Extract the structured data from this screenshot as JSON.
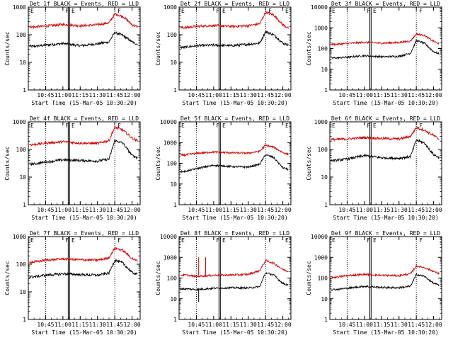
{
  "figure": {
    "xlabel": "Start Time (15-Mar-05 10:30:20)",
    "ylabel": "Counts/sec",
    "x_ticks": [
      "10:45",
      "11:00",
      "11:15",
      "11:30",
      "11:45",
      "12:00"
    ],
    "y_ticks": [
      "1",
      "10",
      "100",
      "1000",
      "10000"
    ],
    "flag_labels": [
      "E",
      "F",
      "E",
      "F",
      "E"
    ],
    "colors": {
      "events": "#000000",
      "lld": "#d40000",
      "background": "#ffffff"
    }
  },
  "chart_data": [
    {
      "type": "line",
      "title": "Det 1f BLACK = Events, RED = LLD",
      "xlabel": "Start Time (15-Mar-05 10:30:20)",
      "ylabel": "Counts/sec",
      "x_range": [
        "10:30",
        "12:07"
      ],
      "y_scale": "log",
      "ylim": [
        1,
        1000
      ],
      "y_ticks": [
        "1",
        "10",
        "100",
        "1000"
      ],
      "x": [
        "10:35",
        "10:45",
        "11:00",
        "11:15",
        "11:30",
        "11:40",
        "11:45",
        "11:52",
        "12:00",
        "12:05"
      ],
      "series": [
        {
          "values": [
            38,
            42,
            48,
            40,
            47,
            55,
            120,
            95,
            55,
            45
          ]
        },
        {
          "values": [
            190,
            205,
            235,
            210,
            230,
            270,
            560,
            460,
            230,
            190
          ]
        }
      ]
    },
    {
      "type": "line",
      "title": "Det 2f BLACK = Events, RED = LLD",
      "xlabel": "Start Time (15-Mar-05 10:30:20)",
      "ylabel": "Counts/sec",
      "x_range": [
        "10:30",
        "12:07"
      ],
      "y_scale": "log",
      "ylim": [
        1,
        1000
      ],
      "y_ticks": [
        "1",
        "10",
        "100",
        "1000"
      ],
      "x": [
        "10:35",
        "10:45",
        "11:00",
        "11:15",
        "11:30",
        "11:40",
        "11:45",
        "11:52",
        "12:00",
        "12:05"
      ],
      "series": [
        {
          "values": [
            35,
            40,
            42,
            40,
            45,
            50,
            130,
            100,
            50,
            42
          ]
        },
        {
          "values": [
            180,
            200,
            215,
            200,
            210,
            250,
            650,
            520,
            230,
            170
          ]
        }
      ]
    },
    {
      "type": "line",
      "title": "Det 3f BLACK = Events, RED = LLD",
      "xlabel": "Start Time (15-Mar-05 10:30:20)",
      "ylabel": "Counts/sec",
      "x_range": [
        "10:30",
        "12:07"
      ],
      "y_scale": "log",
      "ylim": [
        1,
        10000
      ],
      "y_ticks": [
        "1",
        "10",
        "100",
        "1000",
        "10000"
      ],
      "x": [
        "10:35",
        "10:45",
        "11:00",
        "11:15",
        "11:30",
        "11:40",
        "11:45",
        "11:52",
        "12:00",
        "12:05"
      ],
      "series": [
        {
          "values": [
            35,
            38,
            45,
            40,
            42,
            60,
            240,
            180,
            70,
            55
          ]
        },
        {
          "values": [
            160,
            175,
            200,
            180,
            195,
            230,
            500,
            430,
            220,
            170
          ]
        }
      ]
    },
    {
      "type": "line",
      "title": "Det 4f BLACK = Events, RED = LLD",
      "xlabel": "Start Time (15-Mar-05 10:30:20)",
      "ylabel": "Counts/sec",
      "x_range": [
        "10:30",
        "12:07"
      ],
      "y_scale": "log",
      "ylim": [
        1,
        1000
      ],
      "y_ticks": [
        "1",
        "10",
        "100",
        "1000"
      ],
      "x": [
        "10:35",
        "10:45",
        "11:00",
        "11:15",
        "11:30",
        "11:40",
        "11:45",
        "11:52",
        "12:00",
        "12:05"
      ],
      "series": [
        {
          "values": [
            30,
            35,
            42,
            40,
            38,
            45,
            210,
            170,
            60,
            50
          ]
        },
        {
          "values": [
            150,
            170,
            190,
            170,
            165,
            210,
            650,
            500,
            260,
            200
          ]
        }
      ]
    },
    {
      "type": "line",
      "title": "Det 5f BLACK = Events, RED = LLD",
      "xlabel": "Start Time (15-Mar-05 10:30:20)",
      "ylabel": "Counts/sec",
      "x_range": [
        "10:30",
        "12:07"
      ],
      "y_scale": "log",
      "ylim": [
        1,
        10000
      ],
      "y_ticks": [
        "1",
        "10",
        "100",
        "1000",
        "10000"
      ],
      "x": [
        "10:35",
        "10:45",
        "11:00",
        "11:15",
        "11:30",
        "11:40",
        "11:45",
        "11:52",
        "12:00",
        "12:05"
      ],
      "series": [
        {
          "values": [
            40,
            55,
            80,
            70,
            65,
            90,
            260,
            190,
            60,
            50
          ]
        },
        {
          "values": [
            250,
            300,
            350,
            320,
            310,
            380,
            750,
            600,
            330,
            260
          ]
        }
      ]
    },
    {
      "type": "line",
      "title": "Det 6f BLACK = Events, RED = LLD",
      "xlabel": "Start Time (15-Mar-05 10:30:20)",
      "ylabel": "Counts/sec",
      "x_range": [
        "10:30",
        "12:07"
      ],
      "y_scale": "log",
      "ylim": [
        1,
        1000
      ],
      "y_ticks": [
        "1",
        "10",
        "100",
        "1000"
      ],
      "x": [
        "10:35",
        "10:45",
        "11:00",
        "11:15",
        "11:30",
        "11:40",
        "11:45",
        "11:52",
        "12:00",
        "12:05"
      ],
      "series": [
        {
          "values": [
            40,
            45,
            60,
            50,
            48,
            55,
            220,
            170,
            65,
            50
          ]
        },
        {
          "values": [
            230,
            240,
            270,
            250,
            240,
            300,
            620,
            500,
            320,
            230
          ]
        }
      ]
    },
    {
      "type": "line",
      "title": "Det 7f BLACK = Events, RED = LLD",
      "xlabel": "Start Time (15-Mar-05 10:30:20)",
      "ylabel": "Counts/sec",
      "x_range": [
        "10:30",
        "12:07"
      ],
      "y_scale": "log",
      "ylim": [
        1,
        1000
      ],
      "y_ticks": [
        "1",
        "10",
        "100",
        "1000"
      ],
      "x": [
        "10:35",
        "10:45",
        "11:00",
        "11:15",
        "11:30",
        "11:40",
        "11:45",
        "11:52",
        "12:00",
        "12:05"
      ],
      "series": [
        {
          "values": [
            35,
            40,
            45,
            42,
            40,
            48,
            140,
            110,
            50,
            42
          ]
        },
        {
          "values": [
            120,
            140,
            155,
            145,
            140,
            170,
            380,
            320,
            160,
            130
          ]
        }
      ]
    },
    {
      "type": "line",
      "title": "Det 8f BLACK = Events, RED = LLD",
      "xlabel": "Start Time (15-Mar-05 10:30:20)",
      "ylabel": "Counts/sec",
      "x_range": [
        "10:30",
        "12:07"
      ],
      "y_scale": "log",
      "ylim": [
        1,
        10000
      ],
      "y_ticks": [
        "1",
        "10",
        "100",
        "1000",
        "10000"
      ],
      "x": [
        "10:35",
        "10:45",
        "11:00",
        "11:15",
        "11:30",
        "11:40",
        "11:45",
        "11:52",
        "12:00",
        "12:05"
      ],
      "series": [
        {
          "values": [
            30,
            28,
            32,
            34,
            33,
            38,
            180,
            140,
            55,
            45
          ]
        },
        {
          "values": [
            140,
            120,
            135,
            140,
            150,
            230,
            700,
            520,
            260,
            200
          ]
        }
      ]
    },
    {
      "type": "line",
      "title": "Det 9f BLACK = Events, RED = LLD",
      "xlabel": "Start Time (15-Mar-05 10:30:20)",
      "ylabel": "Counts/sec",
      "x_range": [
        "10:30",
        "12:07"
      ],
      "y_scale": "log",
      "ylim": [
        1,
        10000
      ],
      "y_ticks": [
        "1",
        "10",
        "100",
        "1000",
        "10000"
      ],
      "x": [
        "10:35",
        "10:45",
        "11:00",
        "11:15",
        "11:30",
        "11:40",
        "11:45",
        "11:52",
        "12:00",
        "12:05"
      ],
      "series": [
        {
          "values": [
            28,
            32,
            40,
            35,
            34,
            40,
            150,
            120,
            55,
            45
          ]
        },
        {
          "values": [
            110,
            130,
            150,
            135,
            130,
            160,
            380,
            320,
            210,
            160
          ]
        }
      ]
    }
  ]
}
